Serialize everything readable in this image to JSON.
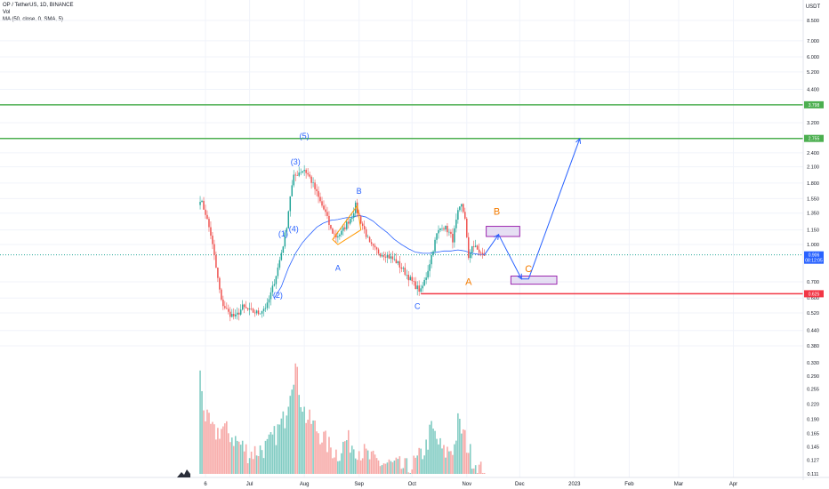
{
  "header": {
    "symbol_line": "OP / TetherUS, 1D, BINANCE",
    "vol_label": "Vol",
    "ma_label": "MA (50, close, 0, SMA, 5)"
  },
  "chart_data": {
    "type": "candlestick",
    "price_axis": {
      "currency": "USDT",
      "scale": "log",
      "ticks": [
        "8.500",
        "7.000",
        "6.000",
        "5.200",
        "4.400",
        "3.800",
        "3.200",
        "2.400",
        "2.100",
        "1.800",
        "1.550",
        "1.350",
        "1.150",
        "1.000",
        "0.700",
        "0.600",
        "0.520",
        "0.440",
        "0.380",
        "0.330",
        "0.290",
        "0.255",
        "0.220",
        "0.190",
        "0.165",
        "0.145",
        "0.127",
        "0.111"
      ]
    },
    "time_axis": {
      "labels": [
        "6",
        "Jul",
        "Aug",
        "Sep",
        "Oct",
        "Nov",
        "Dec",
        "2023",
        "Feb",
        "Mar",
        "Apr"
      ],
      "label_day_index": [
        5,
        30,
        61,
        92,
        122,
        153,
        183,
        214,
        245,
        273,
        304
      ]
    },
    "price_badges": [
      {
        "value": "3.798",
        "color": "#4caf50"
      },
      {
        "value": "2.755",
        "color": "#4caf50"
      },
      {
        "value": "0.906",
        "sub": "08:12:05",
        "color": "#2962ff"
      },
      {
        "value": "0.625",
        "color": "#f23645"
      }
    ],
    "horizontal_levels": [
      {
        "price": 3.798,
        "color": "#4caf50"
      },
      {
        "price": 2.755,
        "color": "#4caf50"
      },
      {
        "price": 0.906,
        "color": "#26a69a",
        "dotted": true
      },
      {
        "price": 0.625,
        "color": "#f23645",
        "from_day": 127
      }
    ],
    "candles_anchor": {
      "start_day": 2,
      "end_day": 163
    },
    "close_path": [
      [
        2,
        1.55
      ],
      [
        5,
        1.35
      ],
      [
        8,
        1.1
      ],
      [
        11,
        0.8
      ],
      [
        14,
        0.58
      ],
      [
        18,
        0.52
      ],
      [
        22,
        0.5
      ],
      [
        26,
        0.55
      ],
      [
        30,
        0.53
      ],
      [
        35,
        0.52
      ],
      [
        40,
        0.56
      ],
      [
        43,
        0.66
      ],
      [
        46,
        0.8
      ],
      [
        49,
        1.0
      ],
      [
        51,
        1.2
      ],
      [
        53,
        1.6
      ],
      [
        55,
        1.9
      ],
      [
        58,
        2.0
      ],
      [
        61,
        2.05
      ],
      [
        64,
        1.9
      ],
      [
        67,
        1.7
      ],
      [
        70,
        1.5
      ],
      [
        73,
        1.35
      ],
      [
        76,
        1.15
      ],
      [
        79,
        1.08
      ],
      [
        82,
        1.12
      ],
      [
        85,
        1.22
      ],
      [
        88,
        1.32
      ],
      [
        90,
        1.45
      ],
      [
        92,
        1.3
      ],
      [
        95,
        1.15
      ],
      [
        98,
        1.0
      ],
      [
        101,
        0.95
      ],
      [
        104,
        0.92
      ],
      [
        107,
        0.91
      ],
      [
        110,
        0.88
      ],
      [
        113,
        0.85
      ],
      [
        116,
        0.8
      ],
      [
        119,
        0.75
      ],
      [
        122,
        0.7
      ],
      [
        125,
        0.66
      ],
      [
        127,
        0.64
      ],
      [
        130,
        0.74
      ],
      [
        133,
        0.9
      ],
      [
        136,
        1.1
      ],
      [
        139,
        1.2
      ],
      [
        142,
        1.15
      ],
      [
        145,
        1.05
      ],
      [
        148,
        1.35
      ],
      [
        150,
        1.45
      ],
      [
        152,
        1.3
      ],
      [
        154,
        0.86
      ],
      [
        156,
        1.0
      ],
      [
        159,
        0.95
      ],
      [
        162,
        0.9
      ],
      [
        163,
        0.906
      ]
    ],
    "ma_50_path": [
      [
        44,
        0.6
      ],
      [
        48,
        0.67
      ],
      [
        52,
        0.8
      ],
      [
        56,
        0.92
      ],
      [
        60,
        1.02
      ],
      [
        64,
        1.1
      ],
      [
        68,
        1.18
      ],
      [
        72,
        1.23
      ],
      [
        76,
        1.26
      ],
      [
        80,
        1.27
      ],
      [
        84,
        1.29
      ],
      [
        88,
        1.3
      ],
      [
        92,
        1.32
      ],
      [
        96,
        1.3
      ],
      [
        100,
        1.25
      ],
      [
        104,
        1.18
      ],
      [
        108,
        1.12
      ],
      [
        112,
        1.05
      ],
      [
        116,
        1.0
      ],
      [
        120,
        0.96
      ],
      [
        124,
        0.93
      ],
      [
        128,
        0.92
      ],
      [
        132,
        0.92
      ],
      [
        136,
        0.93
      ],
      [
        140,
        0.94
      ],
      [
        144,
        0.94
      ],
      [
        148,
        0.95
      ],
      [
        152,
        0.94
      ],
      [
        156,
        0.92
      ],
      [
        160,
        0.91
      ],
      [
        163,
        0.91
      ]
    ],
    "wave_labels": [
      {
        "text": "(5)",
        "day": 61,
        "price": 2.75,
        "color": "#2962ff"
      },
      {
        "text": "(3)",
        "day": 56,
        "price": 2.15,
        "color": "#2962ff"
      },
      {
        "text": "(1)",
        "day": 49,
        "price": 1.08,
        "color": "#2962ff"
      },
      {
        "text": "(4)",
        "day": 55,
        "price": 1.13,
        "color": "#2962ff"
      },
      {
        "text": "(2)",
        "day": 46,
        "price": 0.6,
        "color": "#2962ff"
      },
      {
        "text": "B",
        "day": 92,
        "price": 1.62,
        "color": "#2962ff"
      },
      {
        "text": "A",
        "day": 80,
        "price": 0.78,
        "color": "#2962ff"
      },
      {
        "text": "C",
        "day": 125,
        "price": 0.54,
        "color": "#2962ff"
      },
      {
        "text": "A",
        "day": 154,
        "price": 0.68,
        "color": "#f57c00"
      },
      {
        "text": "B",
        "day": 170,
        "price": 1.33,
        "color": "#f57c00"
      },
      {
        "text": "C",
        "day": 188,
        "price": 0.77,
        "color": "#f57c00"
      }
    ],
    "projection_boxes": [
      {
        "from_day": 164,
        "to_day": 183,
        "top": 1.19,
        "bottom": 1.08
      },
      {
        "from_day": 178,
        "to_day": 204,
        "top": 0.74,
        "bottom": 0.685
      }
    ],
    "projection_path": [
      [
        163,
        0.906
      ],
      [
        171,
        1.1
      ],
      [
        184,
        0.72
      ],
      [
        188,
        0.72
      ],
      [
        217,
        2.75
      ]
    ],
    "triangle": [
      [
        77,
        1.05
      ],
      [
        91,
        1.45
      ],
      [
        93,
        1.15
      ],
      [
        80,
        1.0
      ]
    ],
    "volume_axis": {
      "ticks": [
        "0.330",
        "0.290",
        "0.255",
        "0.220",
        "0.190",
        "0.165",
        "0.145",
        "0.127",
        "0.111"
      ]
    },
    "volume_peaks": [
      [
        2,
        0.3
      ],
      [
        5,
        0.2
      ],
      [
        10,
        0.17
      ],
      [
        15,
        0.18
      ],
      [
        22,
        0.16
      ],
      [
        30,
        0.14
      ],
      [
        40,
        0.15
      ],
      [
        45,
        0.17
      ],
      [
        50,
        0.2
      ],
      [
        53,
        0.27
      ],
      [
        56,
        0.33
      ],
      [
        59,
        0.24
      ],
      [
        62,
        0.2
      ],
      [
        65,
        0.19
      ],
      [
        70,
        0.17
      ],
      [
        75,
        0.15
      ],
      [
        80,
        0.14
      ],
      [
        85,
        0.16
      ],
      [
        90,
        0.15
      ],
      [
        95,
        0.14
      ],
      [
        100,
        0.13
      ],
      [
        110,
        0.125
      ],
      [
        120,
        0.12
      ],
      [
        125,
        0.13
      ],
      [
        130,
        0.15
      ],
      [
        133,
        0.18
      ],
      [
        136,
        0.16
      ],
      [
        140,
        0.14
      ],
      [
        146,
        0.15
      ],
      [
        148,
        0.19
      ],
      [
        151,
        0.17
      ],
      [
        155,
        0.14
      ],
      [
        160,
        0.12
      ],
      [
        163,
        0.115
      ]
    ]
  }
}
